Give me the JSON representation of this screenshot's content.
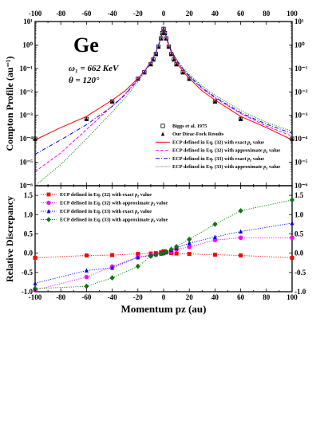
{
  "chart_data": [
    {
      "type": "line",
      "panel": "top",
      "yscale": "log",
      "ylabel": "Compton Profile (au⁻¹)",
      "xlim": [
        -100,
        100
      ],
      "ylim": [
        1e-06,
        10
      ],
      "x_ticks": [
        "-100",
        "-80",
        "-60",
        "-40",
        "-20",
        "0",
        "20",
        "40",
        "60",
        "80",
        "100"
      ],
      "y_ticks": [
        "10⁻⁶",
        "10⁻⁵",
        "10⁻⁴",
        "10⁻³",
        "10⁻²",
        "10⁻¹",
        "10⁰",
        "10¹"
      ],
      "element": "Ge",
      "annotation_energy": "ω₁ = 662 KeV",
      "annotation_angle": "θ = 120°",
      "legend_position": "bottom-right",
      "series": [
        {
          "name": "Biggs et al. 1975",
          "style": "open-square",
          "color": "#000000",
          "x": [
            -100,
            -60,
            -40,
            -20,
            -15,
            -10,
            -8,
            -6,
            -4,
            -2,
            -1,
            0,
            1,
            2,
            4,
            6,
            8,
            10,
            15,
            20,
            40,
            60,
            100
          ],
          "y": [
            0.0001,
            0.0007,
            0.0039,
            0.036,
            0.068,
            0.15,
            0.24,
            0.41,
            0.85,
            1.9,
            3.2,
            4.8,
            3.2,
            1.9,
            0.85,
            0.41,
            0.24,
            0.15,
            0.068,
            0.036,
            0.0039,
            0.0007,
            0.0001
          ]
        },
        {
          "name": "Our Dirac-Fock Results",
          "style": "filled-triangle",
          "color": "#000000",
          "x": [
            -100,
            -60,
            -40,
            -20,
            -15,
            -10,
            -8,
            -6,
            -4,
            -2,
            -1,
            0,
            1,
            2,
            4,
            6,
            8,
            10,
            15,
            20,
            40,
            60,
            100
          ],
          "y": [
            0.0001,
            0.0007,
            0.0039,
            0.036,
            0.068,
            0.15,
            0.24,
            0.41,
            0.85,
            1.9,
            3.2,
            4.8,
            3.2,
            1.9,
            0.85,
            0.41,
            0.24,
            0.15,
            0.068,
            0.036,
            0.0039,
            0.0007,
            0.0001
          ]
        },
        {
          "name": "ECP defined in Eq. (32) with exact pz value",
          "style": "solid",
          "color": "#ff0000",
          "x": [
            -100,
            -80,
            -60,
            -40,
            -30,
            -20,
            -15,
            -10,
            -6,
            -3,
            -1,
            0,
            1,
            3,
            6,
            10,
            15,
            20,
            30,
            40,
            60,
            80,
            100
          ],
          "y": [
            9e-05,
            0.0003,
            0.0009,
            0.0045,
            0.011,
            0.038,
            0.075,
            0.18,
            0.48,
            1.4,
            3.4,
            5.6,
            3.4,
            1.4,
            0.48,
            0.18,
            0.075,
            0.038,
            0.011,
            0.0045,
            0.0009,
            0.0003,
            9e-05
          ]
        },
        {
          "name": "ECP defined in Eq. (32) with approximate pz value",
          "style": "dashed",
          "color": "#ff00ff",
          "x": [
            -100,
            -80,
            -60,
            -40,
            -30,
            -20,
            -15,
            -10,
            -6,
            -3,
            -1,
            0,
            1,
            3,
            6,
            10,
            15,
            20,
            30,
            40,
            60,
            80,
            100
          ],
          "y": [
            4e-06,
            2.5e-05,
            0.00025,
            0.0025,
            0.008,
            0.035,
            0.078,
            0.19,
            0.5,
            1.4,
            3.4,
            5.6,
            3.5,
            1.5,
            0.55,
            0.22,
            0.09,
            0.045,
            0.014,
            0.0055,
            0.0012,
            0.00035,
            0.00013
          ]
        },
        {
          "name": "ECP defined in Eq. (33) with exact pz value",
          "style": "dash-dot",
          "color": "#0000ff",
          "x": [
            -100,
            -80,
            -60,
            -40,
            -30,
            -20,
            -15,
            -10,
            -6,
            -3,
            -1,
            0,
            1,
            3,
            6,
            10,
            15,
            20,
            30,
            40,
            60,
            80,
            100
          ],
          "y": [
            2.2e-05,
            9e-05,
            0.0004,
            0.0024,
            0.0075,
            0.032,
            0.07,
            0.17,
            0.47,
            1.4,
            3.4,
            5.6,
            3.5,
            1.5,
            0.55,
            0.23,
            0.095,
            0.048,
            0.015,
            0.006,
            0.0013,
            0.00042,
            0.00017
          ]
        },
        {
          "name": "ECP defined in Eq. (33) with approximate pz value",
          "style": "dotted",
          "color": "#008000",
          "x": [
            -100,
            -80,
            -60,
            -40,
            -30,
            -20,
            -15,
            -10,
            -6,
            -3,
            -1,
            0,
            1,
            3,
            6,
            10,
            15,
            20,
            30,
            40,
            60,
            80,
            100
          ],
          "y": [
            7e-07,
            8e-06,
            0.0001,
            0.0014,
            0.0055,
            0.027,
            0.065,
            0.17,
            0.47,
            1.4,
            3.4,
            5.6,
            3.6,
            1.6,
            0.6,
            0.25,
            0.11,
            0.055,
            0.018,
            0.0072,
            0.0016,
            0.0005,
            0.00021
          ]
        }
      ]
    },
    {
      "type": "line",
      "panel": "bottom",
      "xlabel": "Momentum pz (au)",
      "ylabel": "Relative Discrepancy",
      "xlim": [
        -100,
        100
      ],
      "ylim": [
        -1.0,
        1.75
      ],
      "x_ticks": [
        "-100",
        "-80",
        "-60",
        "-40",
        "-20",
        "0",
        "20",
        "40",
        "60",
        "80",
        "100"
      ],
      "y_ticks": [
        "-1.0",
        "-0.5",
        "0.0",
        "0.5",
        "1.0",
        "1.5"
      ],
      "legend_position": "top-left",
      "series": [
        {
          "name": "ECP defined in Eq. (32) with exact pz value",
          "style": "dotted-square",
          "color": "#ff0000",
          "x": [
            -100,
            -60,
            -40,
            -20,
            -10,
            -6,
            -2,
            0,
            2,
            6,
            10,
            20,
            40,
            60,
            100
          ],
          "y": [
            -0.12,
            -0.06,
            -0.05,
            -0.02,
            -0.01,
            0.0,
            0.02,
            0.05,
            0.02,
            0.0,
            -0.01,
            -0.02,
            -0.04,
            -0.06,
            -0.12
          ]
        },
        {
          "name": "ECP defined in Eq. (32) with approximate pz value",
          "style": "dotted-circle",
          "color": "#ff00ff",
          "x": [
            -100,
            -60,
            -40,
            -20,
            -10,
            -6,
            -2,
            0,
            2,
            6,
            10,
            20,
            40,
            60,
            100
          ],
          "y": [
            -0.96,
            -0.62,
            -0.35,
            -0.1,
            -0.05,
            -0.03,
            -0.01,
            0.0,
            0.02,
            0.05,
            0.1,
            0.16,
            0.34,
            0.4,
            0.4
          ]
        },
        {
          "name": "ECP defined in Eq. (33) with exact pz value",
          "style": "dotted-triangle",
          "color": "#0000ff",
          "x": [
            -100,
            -60,
            -40,
            -20,
            -10,
            -6,
            -2,
            0,
            2,
            6,
            10,
            20,
            40,
            60,
            100
          ],
          "y": [
            -0.78,
            -0.45,
            -0.38,
            -0.11,
            -0.06,
            -0.03,
            -0.01,
            0.0,
            0.03,
            0.08,
            0.13,
            0.26,
            0.42,
            0.56,
            0.78
          ]
        },
        {
          "name": "ECP defined in Eq. (33) with approximate pz value",
          "style": "dotted-diamond",
          "color": "#008000",
          "x": [
            -100,
            -60,
            -40,
            -20,
            -10,
            -6,
            -2,
            0,
            2,
            6,
            10,
            20,
            40,
            60,
            100
          ],
          "y": [
            -0.92,
            -0.86,
            -0.64,
            -0.34,
            -0.08,
            -0.04,
            -0.01,
            0.0,
            0.04,
            0.1,
            0.17,
            0.36,
            0.75,
            1.1,
            1.38
          ]
        }
      ]
    }
  ]
}
